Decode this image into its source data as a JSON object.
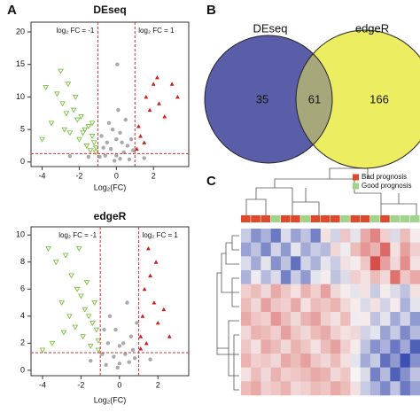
{
  "chart_data": [
    {
      "type": "scatter",
      "panel": "A",
      "title": "DEseq",
      "x_label": "Log₂(FC)",
      "xlim": [
        -4.6,
        3.9
      ],
      "ylim": [
        -0.7,
        21.5
      ],
      "xticks": [
        -4,
        -2,
        0,
        2
      ],
      "yticks": [
        0,
        5,
        10,
        15,
        20
      ],
      "thresholds": {
        "x": [
          -1,
          1
        ],
        "y": 1.3,
        "color": "#cc3333"
      },
      "annotations": [
        {
          "text": "log₂ FC = -1",
          "color": "#6aa84f"
        },
        {
          "text": "log₂ FC = 1",
          "color": "#cc3333"
        }
      ],
      "series": [
        {
          "color": "#7cc242",
          "marker": "triangle-down",
          "x": [
            -3.8,
            -3.2,
            -2.9,
            -2.6,
            -2.3,
            -2.1,
            -1.9,
            -1.7,
            -1.5,
            -1.3,
            -1.2,
            -1.1,
            -3.5,
            -2.8,
            -2.5,
            -2,
            -1.6,
            -1.4,
            -3,
            -2.2,
            -1.8,
            -2.7,
            -1.3,
            -4,
            -1.1
          ],
          "values": [
            11.5,
            10.5,
            9,
            12,
            8,
            6.5,
            7,
            5,
            5.5,
            4,
            3,
            2.2,
            6,
            5,
            4.5,
            3.5,
            2.5,
            1.8,
            14,
            10,
            4.5,
            7.5,
            6,
            3.5,
            1.5
          ]
        },
        {
          "color": "#aaaaaa",
          "marker": "circle",
          "x": [
            -0.8,
            -0.5,
            -0.3,
            0,
            0.2,
            0.4,
            0.6,
            0.8,
            -0.6,
            -0.2,
            0.1,
            0.3,
            -0.9,
            0.7,
            -0.4,
            0.5,
            0,
            -0.1,
            0.9,
            -0.7,
            0.2,
            -1.5,
            1.5,
            -2.5,
            0.05
          ],
          "values": [
            4,
            3,
            2,
            1,
            0.5,
            1.5,
            2.5,
            3.5,
            1,
            5,
            8,
            3,
            0.8,
            0.4,
            6,
            6.5,
            3.5,
            0.2,
            1.8,
            2.2,
            4.5,
            0.8,
            0.6,
            0.9,
            15
          ]
        },
        {
          "color": "#cc1f1f",
          "marker": "triangle-up",
          "x": [
            1.1,
            1.3,
            1.2,
            1.6,
            1.8,
            2,
            2.3,
            2.6,
            3,
            3.3,
            1.5,
            2.2
          ],
          "values": [
            2,
            4,
            5.5,
            10,
            8,
            12,
            9,
            7,
            12,
            10,
            3,
            13
          ]
        }
      ]
    },
    {
      "type": "scatter",
      "title": "edgeR",
      "x_label": "Log₂(FC)",
      "xlim": [
        -4.6,
        3.6
      ],
      "ylim": [
        -0.4,
        10.6
      ],
      "xticks": [
        -4,
        -2,
        0,
        2
      ],
      "yticks": [
        0,
        2,
        4,
        6,
        8,
        10
      ],
      "thresholds": {
        "x": [
          -1,
          1
        ],
        "y": 1.3,
        "color": "#cc3333"
      },
      "annotations": [
        {
          "text": "log₂ FC = -1",
          "color": "#6aa84f"
        },
        {
          "text": "log₂ FC = 1",
          "color": "#cc3333"
        }
      ],
      "series": [
        {
          "color": "#7cc242",
          "marker": "triangle-down",
          "x": [
            -3.7,
            -3.3,
            -2.8,
            -2.5,
            -2.2,
            -2,
            -1.8,
            -1.6,
            -1.4,
            -1.2,
            -1.1,
            -3,
            -2.6,
            -2.3,
            -1.9,
            -1.5,
            -3.5,
            -2.9,
            -1.3,
            -2.1,
            -1.7,
            -4,
            -1.1
          ],
          "values": [
            9,
            8,
            8.5,
            7,
            6,
            5.5,
            4.5,
            4,
            3.5,
            3,
            2.2,
            5,
            4,
            3.2,
            2.5,
            1.8,
            2,
            2.8,
            5,
            9,
            6.5,
            1.5,
            1.5
          ]
        },
        {
          "color": "#aaaaaa",
          "marker": "circle",
          "x": [
            -0.8,
            -0.6,
            -0.3,
            0,
            0.3,
            0.6,
            0.9,
            -0.5,
            0.2,
            -0.1,
            0.5,
            -0.9,
            0.8,
            -0.2,
            0.4,
            0,
            -0.7,
            0.7,
            -1.5,
            1.6
          ],
          "values": [
            3,
            2,
            1,
            0.5,
            1.2,
            2.5,
            3.5,
            4,
            2,
            0.2,
            0.6,
            1.2,
            0.9,
            3,
            5,
            1.8,
            0.4,
            1.5,
            0.7,
            0.8
          ]
        },
        {
          "color": "#cc1f1f",
          "marker": "triangle-up",
          "x": [
            1.1,
            1.2,
            1.3,
            1.5,
            1.6,
            1.8,
            2,
            2.3,
            1.4,
            1.9,
            2.6,
            1.1
          ],
          "values": [
            2.5,
            4,
            6,
            9,
            7,
            5,
            3.5,
            4.5,
            2,
            8,
            2.5,
            1.6
          ]
        }
      ]
    },
    {
      "type": "venn",
      "panel": "B",
      "sets": [
        "DEseq",
        "edgeR"
      ],
      "colors": [
        "#5a5ea8",
        "#eded62"
      ],
      "overlap_color": "#a7a77c",
      "values": [
        35,
        61,
        166
      ]
    },
    {
      "type": "heatmap",
      "panel": "C",
      "zlim": [
        -2,
        2
      ],
      "colors": {
        "low": "#3c4fb2",
        "mid": "#f7f4f4",
        "high": "#d23a36"
      },
      "legend": [
        {
          "label": "Bad prognosis",
          "color": "#e0482a"
        },
        {
          "label": "Good prognosis",
          "color": "#9fd48a"
        }
      ],
      "col_annotation": [
        0,
        0,
        0,
        1,
        0,
        0,
        1,
        0,
        0,
        0,
        1,
        0,
        0,
        1,
        0,
        1,
        1,
        1
      ],
      "values": [
        [
          -0.5,
          -1.2,
          -0.8,
          -1.5,
          -0.3,
          -1,
          -0.6,
          -1.4,
          0.2,
          -0.4,
          0.5,
          -0.2,
          0.8,
          1.2,
          0.4,
          -0.3,
          0.6,
          0.1
        ],
        [
          -1,
          -0.6,
          -1.3,
          -0.4,
          -1.1,
          -0.2,
          -0.9,
          -0.5,
          -0.7,
          0.3,
          -0.1,
          0.6,
          1,
          0.7,
          1.5,
          0.2,
          0.9,
          0.4
        ],
        [
          -0.3,
          -0.9,
          -0.2,
          -1.2,
          -0.6,
          -1.6,
          -0.4,
          -0.8,
          -0.2,
          -0.5,
          0.2,
          0.1,
          0.5,
          1.8,
          0.9,
          0.3,
          1.1,
          0.2
        ],
        [
          -0.8,
          -0.1,
          -0.7,
          -0.3,
          -1.4,
          -0.5,
          -1.1,
          -0.2,
          0.1,
          -0.6,
          -0.3,
          0.4,
          0.2,
          0.6,
          0.3,
          1.4,
          0.5,
          0.8
        ],
        [
          0.4,
          0.6,
          0.3,
          0.8,
          0.5,
          0.2,
          0.7,
          0.4,
          0.9,
          0.3,
          0.1,
          -0.2,
          0.2,
          -0.5,
          0.1,
          -0.3,
          -0.6,
          0.2
        ],
        [
          0.6,
          0.3,
          0.9,
          0.5,
          0.4,
          0.8,
          0.2,
          0.6,
          0.5,
          0.7,
          0.3,
          0.1,
          -0.3,
          0.2,
          -0.4,
          0.1,
          -0.8,
          -0.2
        ],
        [
          0.8,
          0.5,
          0.4,
          1,
          0.6,
          0.3,
          0.7,
          0.9,
          0.4,
          0.2,
          0.6,
          -0.1,
          0.1,
          -0.6,
          -0.2,
          -0.9,
          -0.4,
          -1.1
        ],
        [
          0.3,
          0.7,
          0.6,
          0.4,
          0.9,
          0.5,
          0.3,
          0.6,
          0.8,
          0.4,
          0.2,
          0.3,
          -0.4,
          -0.2,
          -1,
          -0.5,
          -1.3,
          -0.7
        ],
        [
          0.5,
          0.2,
          0.8,
          0.6,
          0.3,
          0.7,
          0.5,
          0.2,
          0.6,
          0.9,
          0.4,
          0.1,
          -0.6,
          -1.2,
          -0.8,
          -1.5,
          -0.9,
          -1.8
        ],
        [
          0.7,
          0.4,
          0.5,
          0.3,
          0.8,
          0.6,
          0.9,
          0.5,
          0.3,
          0.6,
          0.2,
          -0.2,
          -0.9,
          -0.5,
          -1.6,
          -1.1,
          -2,
          -1.2
        ],
        [
          0.2,
          0.6,
          0.3,
          0.7,
          0.4,
          0.5,
          0.6,
          0.8,
          0.7,
          0.3,
          0.5,
          0,
          -0.3,
          -1.4,
          -0.7,
          -1.8,
          -1.2,
          -0.6
        ],
        [
          0.6,
          0.8,
          0.4,
          0.5,
          0.7,
          0.3,
          0.4,
          0.6,
          0.5,
          0.8,
          0.6,
          0.2,
          -0.5,
          -0.8,
          -1.3,
          -0.6,
          -1.5,
          -1
        ]
      ]
    }
  ]
}
